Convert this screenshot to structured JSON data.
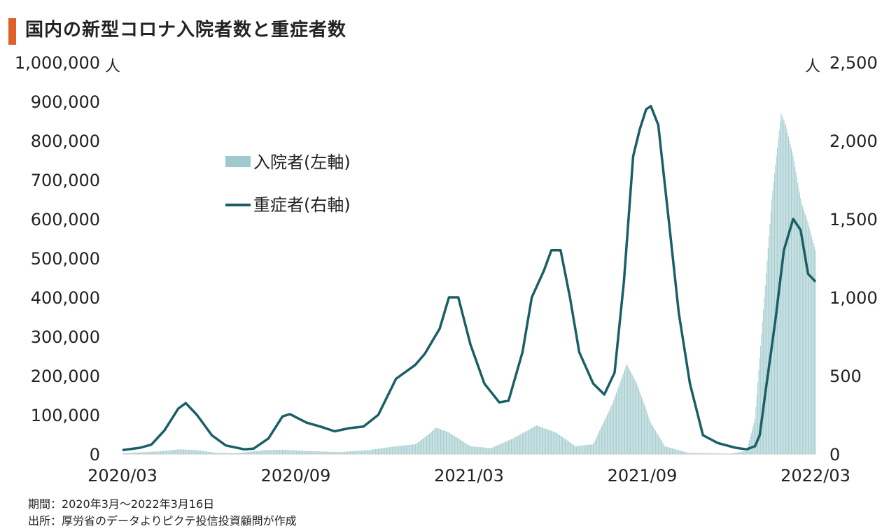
{
  "title": "国内の新型コロナ入院者数と重症者数",
  "notes": {
    "period": "期間：2020年3月～2022年3月16日",
    "source": "出所：厚労省のデータよりピクテ投信投資顧問が作成"
  },
  "colors": {
    "accent": "#e0602a",
    "bars": "#9fc9cc",
    "line": "#1a5f66"
  },
  "chart_data": {
    "type": "bar+line",
    "x_labels": [
      "2020/03",
      "2020/09",
      "2021/03",
      "2021/09",
      "2022/03"
    ],
    "left_axis": {
      "unit": "人",
      "min": 0,
      "max": 1000000,
      "ticks": [
        "0",
        "100,000",
        "200,000",
        "300,000",
        "400,000",
        "500,000",
        "600,000",
        "700,000",
        "800,000",
        "900,000",
        "1,000,000"
      ]
    },
    "right_axis": {
      "unit": "人",
      "min": 0,
      "max": 2500,
      "ticks": [
        "0",
        "500",
        "1,000",
        "1,500",
        "2,000",
        "2,500"
      ]
    },
    "legend": [
      {
        "name": "入院者(左軸)",
        "kind": "bar",
        "axis": "left"
      },
      {
        "name": "重症者(右軸)",
        "kind": "line",
        "axis": "right"
      }
    ],
    "x_range": [
      "2020-03-01",
      "2022-03-16"
    ],
    "hospitalized_left": [
      [
        "2020-03-01",
        2000
      ],
      [
        "2020-04-10",
        7000
      ],
      [
        "2020-05-01",
        12000
      ],
      [
        "2020-05-20",
        10000
      ],
      [
        "2020-06-10",
        3000
      ],
      [
        "2020-07-01",
        2000
      ],
      [
        "2020-08-01",
        10000
      ],
      [
        "2020-08-20",
        11000
      ],
      [
        "2020-09-15",
        8000
      ],
      [
        "2020-10-20",
        5000
      ],
      [
        "2020-11-20",
        10000
      ],
      [
        "2020-12-20",
        20000
      ],
      [
        "2021-01-10",
        25000
      ],
      [
        "2021-01-25",
        52000
      ],
      [
        "2021-02-01",
        68000
      ],
      [
        "2021-02-15",
        55000
      ],
      [
        "2021-03-10",
        20000
      ],
      [
        "2021-04-01",
        15000
      ],
      [
        "2021-04-25",
        40000
      ],
      [
        "2021-05-20",
        73000
      ],
      [
        "2021-06-10",
        55000
      ],
      [
        "2021-07-01",
        20000
      ],
      [
        "2021-07-20",
        25000
      ],
      [
        "2021-08-10",
        130000
      ],
      [
        "2021-08-25",
        230000
      ],
      [
        "2021-09-05",
        180000
      ],
      [
        "2021-09-20",
        80000
      ],
      [
        "2021-10-05",
        20000
      ],
      [
        "2021-10-30",
        3000
      ],
      [
        "2021-12-15",
        1000
      ],
      [
        "2022-01-01",
        8000
      ],
      [
        "2022-01-10",
        90000
      ],
      [
        "2022-01-20",
        400000
      ],
      [
        "2022-01-28",
        650000
      ],
      [
        "2022-02-07",
        870000
      ],
      [
        "2022-02-12",
        840000
      ],
      [
        "2022-02-20",
        760000
      ],
      [
        "2022-03-01",
        640000
      ],
      [
        "2022-03-08",
        590000
      ],
      [
        "2022-03-16",
        520000
      ]
    ],
    "severe_right": [
      [
        "2020-03-01",
        25
      ],
      [
        "2020-03-20",
        40
      ],
      [
        "2020-04-01",
        60
      ],
      [
        "2020-04-15",
        150
      ],
      [
        "2020-04-30",
        290
      ],
      [
        "2020-05-08",
        325
      ],
      [
        "2020-05-20",
        250
      ],
      [
        "2020-06-05",
        120
      ],
      [
        "2020-06-20",
        55
      ],
      [
        "2020-07-10",
        30
      ],
      [
        "2020-07-20",
        35
      ],
      [
        "2020-08-05",
        100
      ],
      [
        "2020-08-20",
        240
      ],
      [
        "2020-08-28",
        255
      ],
      [
        "2020-09-15",
        200
      ],
      [
        "2020-09-30",
        175
      ],
      [
        "2020-10-15",
        145
      ],
      [
        "2020-10-31",
        165
      ],
      [
        "2020-11-15",
        175
      ],
      [
        "2020-12-01",
        250
      ],
      [
        "2020-12-20",
        480
      ],
      [
        "2021-01-10",
        570
      ],
      [
        "2021-01-20",
        640
      ],
      [
        "2021-02-05",
        800
      ],
      [
        "2021-02-15",
        1000
      ],
      [
        "2021-02-25",
        1000
      ],
      [
        "2021-03-10",
        700
      ],
      [
        "2021-03-25",
        450
      ],
      [
        "2021-04-10",
        330
      ],
      [
        "2021-04-20",
        340
      ],
      [
        "2021-05-05",
        650
      ],
      [
        "2021-05-15",
        1000
      ],
      [
        "2021-05-28",
        1170
      ],
      [
        "2021-06-05",
        1300
      ],
      [
        "2021-06-15",
        1300
      ],
      [
        "2021-06-25",
        1000
      ],
      [
        "2021-07-05",
        650
      ],
      [
        "2021-07-20",
        450
      ],
      [
        "2021-08-01",
        380
      ],
      [
        "2021-08-12",
        520
      ],
      [
        "2021-08-22",
        1100
      ],
      [
        "2021-09-01",
        1900
      ],
      [
        "2021-09-08",
        2070
      ],
      [
        "2021-09-15",
        2200
      ],
      [
        "2021-09-20",
        2220
      ],
      [
        "2021-09-28",
        2100
      ],
      [
        "2021-10-10",
        1450
      ],
      [
        "2021-10-20",
        900
      ],
      [
        "2021-11-01",
        450
      ],
      [
        "2021-11-15",
        120
      ],
      [
        "2021-12-01",
        70
      ],
      [
        "2021-12-20",
        40
      ],
      [
        "2022-01-01",
        30
      ],
      [
        "2022-01-10",
        50
      ],
      [
        "2022-01-15",
        120
      ],
      [
        "2022-01-22",
        430
      ],
      [
        "2022-02-01",
        860
      ],
      [
        "2022-02-10",
        1300
      ],
      [
        "2022-02-20",
        1500
      ],
      [
        "2022-02-28",
        1430
      ],
      [
        "2022-03-08",
        1150
      ],
      [
        "2022-03-16",
        1100
      ]
    ]
  }
}
